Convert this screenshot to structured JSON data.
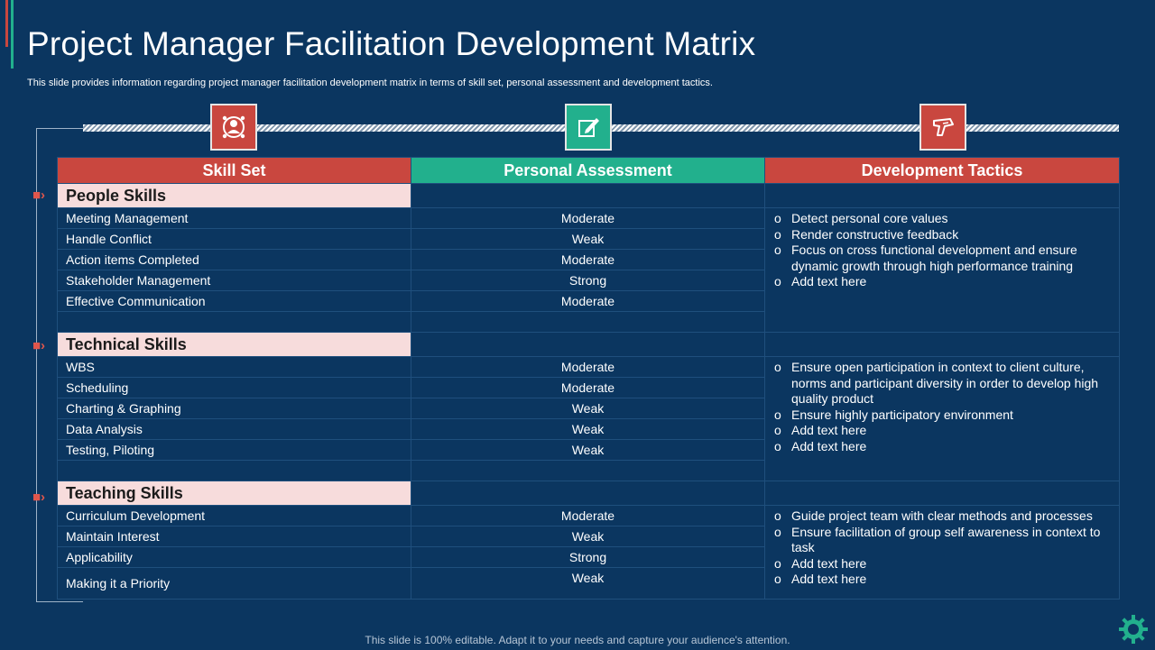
{
  "title": "Project Manager Facilitation Development Matrix",
  "subtitle": "This slide provides information regarding project manager facilitation development matrix in terms of skill set, personal assessment and development tactics.",
  "icons": {
    "col1": "team-leader-icon",
    "col2": "edit-document-icon",
    "col3": "drill-tool-icon",
    "corner": "gear-icon"
  },
  "colors": {
    "background": "#0b3660",
    "red": "#c9473f",
    "green": "#22b08d",
    "section_fill": "#f7dcdc"
  },
  "headers": [
    "Skill Set",
    "Personal Assessment",
    "Development Tactics"
  ],
  "sections": [
    {
      "name": "People Skills",
      "rows": [
        {
          "skill": "Meeting Management",
          "assessment": "Moderate"
        },
        {
          "skill": "Handle Conflict",
          "assessment": "Weak"
        },
        {
          "skill": "Action items Completed",
          "assessment": "Moderate"
        },
        {
          "skill": "Stakeholder Management",
          "assessment": "Strong"
        },
        {
          "skill": "Effective Communication",
          "assessment": "Moderate"
        }
      ],
      "tactics": [
        "Detect personal core values",
        "Render constructive feedback",
        "Focus on cross functional development and ensure dynamic growth through high performance training",
        "Add text here"
      ]
    },
    {
      "name": "Technical Skills",
      "rows": [
        {
          "skill": "WBS",
          "assessment": "Moderate"
        },
        {
          "skill": "Scheduling",
          "assessment": "Moderate"
        },
        {
          "skill": "Charting & Graphing",
          "assessment": "Weak"
        },
        {
          "skill": "Data Analysis",
          "assessment": "Weak"
        },
        {
          "skill": "Testing, Piloting",
          "assessment": "Weak"
        }
      ],
      "tactics": [
        "Ensure open participation in context to client culture, norms and participant diversity in order to develop high quality product",
        "Ensure highly participatory environment",
        "Add text here",
        "Add text here"
      ]
    },
    {
      "name": "Teaching Skills",
      "rows": [
        {
          "skill": "Curriculum Development",
          "assessment": "Moderate"
        },
        {
          "skill": "Maintain Interest",
          "assessment": "Weak"
        },
        {
          "skill": "Applicability",
          "assessment": "Strong"
        },
        {
          "skill": "Making it a Priority",
          "assessment": "Weak"
        }
      ],
      "tactics": [
        "Guide project team with clear methods and processes",
        "Ensure facilitation of group self awareness in context to task",
        "Add text here",
        "Add text here"
      ]
    }
  ],
  "footer": "This slide is 100% editable. Adapt it to your needs and capture your audience's attention."
}
